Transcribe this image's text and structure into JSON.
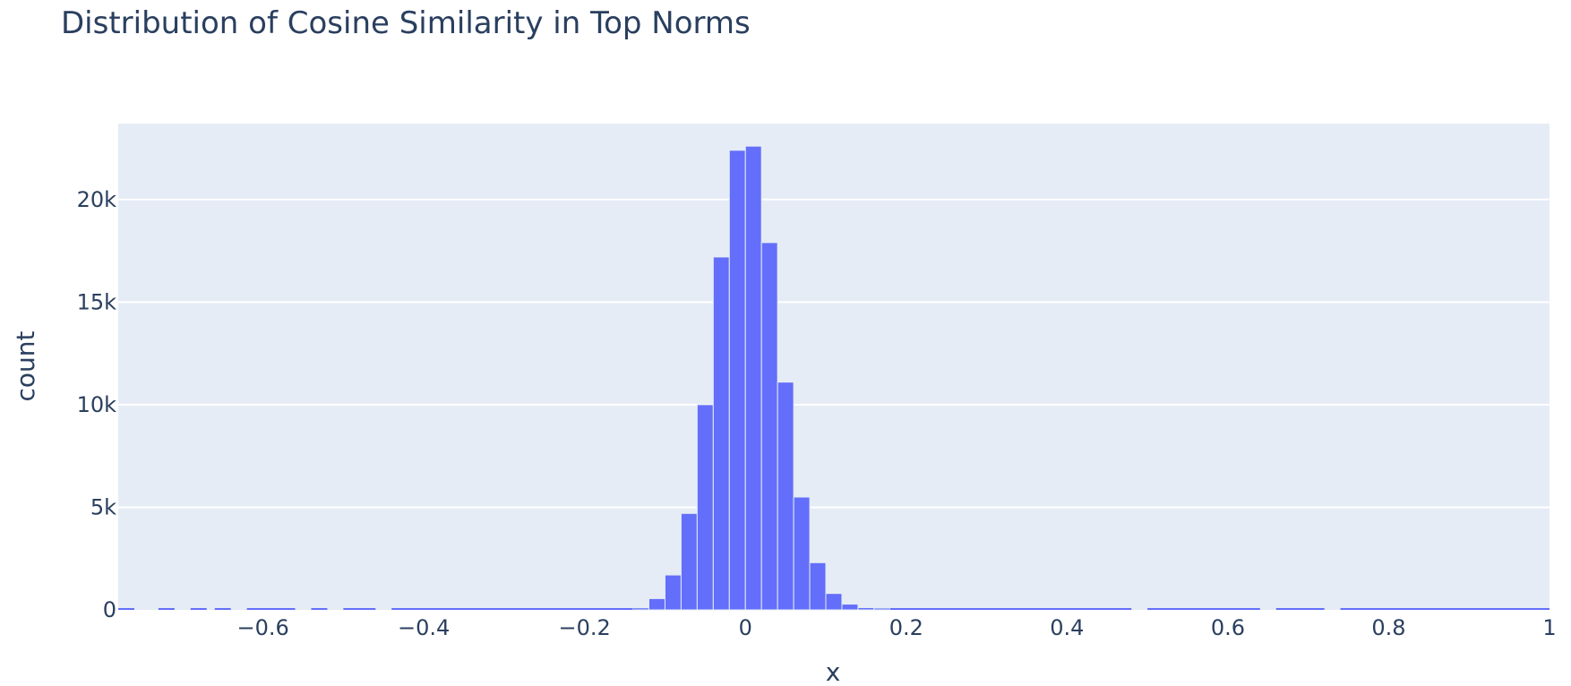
{
  "chart_data": {
    "type": "bar",
    "title": "Distribution of Cosine Similarity in Top Norms",
    "xlabel": "x",
    "ylabel": "count",
    "xlim": [
      -0.78,
      1.0
    ],
    "ylim": [
      0,
      23700
    ],
    "grid": true,
    "bin_width": 0.02,
    "bar_color": "#636efa",
    "plot_bg": "#e5ecf6",
    "x_ticks": [
      -0.6,
      -0.4,
      -0.2,
      0,
      0.2,
      0.4,
      0.6,
      0.8,
      1
    ],
    "x_tick_labels": [
      "−0.6",
      "−0.4",
      "−0.2",
      "0",
      "0.2",
      "0.4",
      "0.6",
      "0.8",
      "1"
    ],
    "y_ticks": [
      0,
      5000,
      10000,
      15000,
      20000
    ],
    "y_tick_labels": [
      "0",
      "5k",
      "10k",
      "15k",
      "20k"
    ],
    "bins": [
      {
        "x0": -0.14,
        "count": 100
      },
      {
        "x0": -0.12,
        "count": 550
      },
      {
        "x0": -0.1,
        "count": 1700
      },
      {
        "x0": -0.08,
        "count": 4700
      },
      {
        "x0": -0.06,
        "count": 10000
      },
      {
        "x0": -0.04,
        "count": 17200
      },
      {
        "x0": -0.02,
        "count": 22400
      },
      {
        "x0": 0.0,
        "count": 22600
      },
      {
        "x0": 0.02,
        "count": 17900
      },
      {
        "x0": 0.04,
        "count": 11100
      },
      {
        "x0": 0.06,
        "count": 5500
      },
      {
        "x0": 0.08,
        "count": 2300
      },
      {
        "x0": 0.1,
        "count": 800
      },
      {
        "x0": 0.12,
        "count": 280
      },
      {
        "x0": 0.14,
        "count": 110
      },
      {
        "x0": 0.16,
        "count": 90
      }
    ],
    "sparse_segments": [
      [
        -0.78,
        -0.76
      ],
      [
        -0.73,
        -0.71
      ],
      [
        -0.69,
        -0.67
      ],
      [
        -0.66,
        -0.64
      ],
      [
        -0.62,
        -0.56
      ],
      [
        -0.54,
        -0.52
      ],
      [
        -0.5,
        -0.46
      ],
      [
        -0.44,
        -0.14
      ],
      [
        0.18,
        0.48
      ],
      [
        0.5,
        0.64
      ],
      [
        0.66,
        0.72
      ],
      [
        0.74,
        1.0
      ]
    ]
  }
}
